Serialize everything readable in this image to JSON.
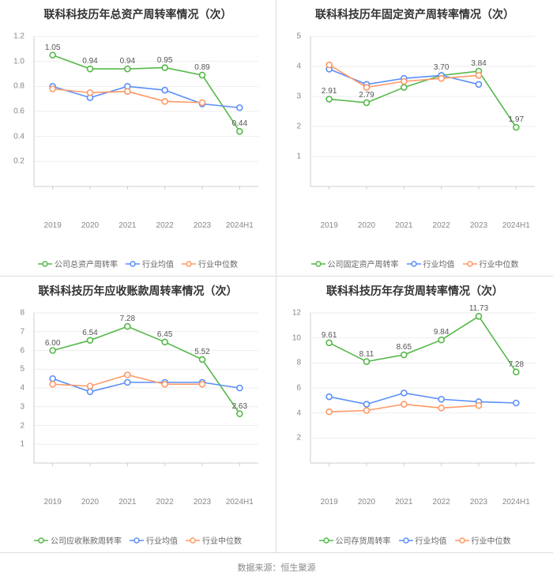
{
  "footer": "数据来源：恒生聚源",
  "categories": [
    "2019",
    "2020",
    "2021",
    "2022",
    "2023",
    "2024H1"
  ],
  "colors": {
    "company": "#55b949",
    "avg": "#5b8ff9",
    "median": "#ff9966",
    "grid": "#eeeeee",
    "axis": "#cccccc",
    "text": "#888888"
  },
  "marker_radius": 3.5,
  "line_width": 1.6,
  "title_fontsize": 14,
  "tick_fontsize": 10,
  "panels": [
    {
      "title": "联科科技历年总资产周转率情况（次）",
      "ymin": 0,
      "ymax": 1.2,
      "ystep": 0.2,
      "decimals": 1,
      "legend": [
        "公司总资产周转率",
        "行业均值",
        "行业中位数"
      ],
      "series": [
        {
          "color_key": "company",
          "data": [
            1.05,
            0.94,
            0.94,
            0.95,
            0.89,
            0.44
          ],
          "labels": [
            {
              "i": 0,
              "v": "1.05"
            },
            {
              "i": 1,
              "v": "0.94"
            },
            {
              "i": 2,
              "v": "0.94"
            },
            {
              "i": 3,
              "v": "0.95"
            },
            {
              "i": 4,
              "v": "0.89"
            },
            {
              "i": 5,
              "v": "0.44"
            }
          ]
        },
        {
          "color_key": "avg",
          "data": [
            0.8,
            0.71,
            0.8,
            0.77,
            0.66,
            0.63
          ],
          "labels": []
        },
        {
          "color_key": "median",
          "data": [
            0.78,
            0.75,
            0.76,
            0.68,
            0.67,
            null
          ],
          "labels": []
        }
      ]
    },
    {
      "title": "联科科技历年固定资产周转率情况（次）",
      "ymin": 0,
      "ymax": 5,
      "ystep": 1,
      "decimals": 0,
      "legend": [
        "公司固定资产周转率",
        "行业均值",
        "行业中位数"
      ],
      "series": [
        {
          "color_key": "company",
          "data": [
            2.91,
            2.79,
            3.3,
            3.7,
            3.84,
            1.97
          ],
          "labels": [
            {
              "i": 0,
              "v": "2.91"
            },
            {
              "i": 1,
              "v": "2.79"
            },
            {
              "i": 3,
              "v": "3.70"
            },
            {
              "i": 4,
              "v": "3.84"
            },
            {
              "i": 5,
              "v": "1.97"
            }
          ]
        },
        {
          "color_key": "avg",
          "data": [
            3.91,
            3.4,
            3.6,
            3.7,
            3.4,
            null
          ],
          "labels": []
        },
        {
          "color_key": "median",
          "data": [
            4.05,
            3.3,
            3.5,
            3.6,
            3.7,
            null
          ],
          "labels": []
        }
      ]
    },
    {
      "title": "联科科技历年应收账款周转率情况（次）",
      "ymin": 0,
      "ymax": 8,
      "ystep": 1,
      "decimals": 0,
      "legend": [
        "公司应收账款周转率",
        "行业均值",
        "行业中位数"
      ],
      "series": [
        {
          "color_key": "company",
          "data": [
            6.0,
            6.54,
            7.28,
            6.45,
            5.52,
            2.63
          ],
          "labels": [
            {
              "i": 0,
              "v": "6.00"
            },
            {
              "i": 1,
              "v": "6.54"
            },
            {
              "i": 2,
              "v": "7.28"
            },
            {
              "i": 3,
              "v": "6.45"
            },
            {
              "i": 4,
              "v": "5.52"
            },
            {
              "i": 5,
              "v": "2.63"
            }
          ]
        },
        {
          "color_key": "avg",
          "data": [
            4.5,
            3.8,
            4.3,
            4.3,
            4.3,
            4.0
          ],
          "labels": []
        },
        {
          "color_key": "median",
          "data": [
            4.2,
            4.1,
            4.7,
            4.2,
            4.2,
            null
          ],
          "labels": []
        }
      ]
    },
    {
      "title": "联科科技历年存货周转率情况（次）",
      "ymin": 0,
      "ymax": 12,
      "ystep": 2,
      "decimals": 0,
      "legend": [
        "公司存货周转率",
        "行业均值",
        "行业中位数"
      ],
      "series": [
        {
          "color_key": "company",
          "data": [
            9.61,
            8.11,
            8.65,
            9.84,
            11.73,
            7.28
          ],
          "labels": [
            {
              "i": 0,
              "v": "9.61"
            },
            {
              "i": 1,
              "v": "8.11"
            },
            {
              "i": 2,
              "v": "8.65"
            },
            {
              "i": 3,
              "v": "9.84"
            },
            {
              "i": 4,
              "v": "11.73"
            },
            {
              "i": 5,
              "v": "7.28"
            }
          ]
        },
        {
          "color_key": "avg",
          "data": [
            5.3,
            4.7,
            5.6,
            5.1,
            4.9,
            4.8
          ],
          "labels": []
        },
        {
          "color_key": "median",
          "data": [
            4.1,
            4.2,
            4.7,
            4.4,
            4.6,
            null
          ],
          "labels": []
        }
      ]
    }
  ]
}
